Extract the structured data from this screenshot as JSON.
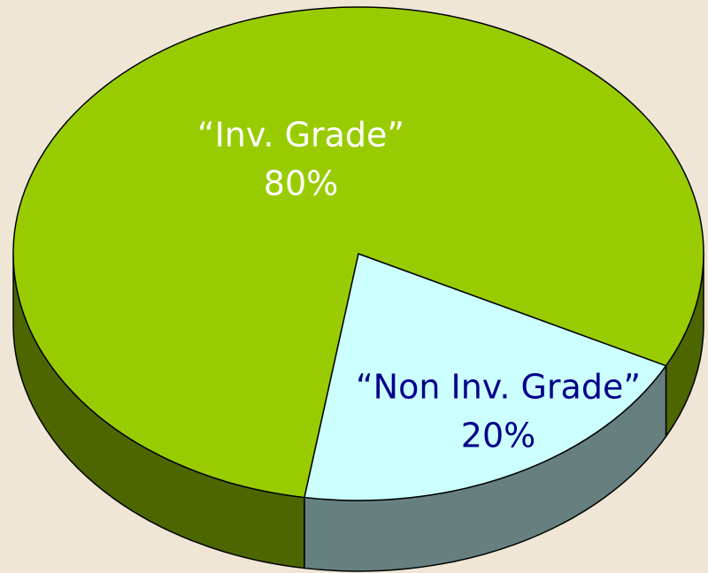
{
  "chart_data": {
    "type": "pie",
    "categories": [
      "“Inv. Grade”",
      "“Non Inv. Grade”"
    ],
    "values": [
      80,
      20
    ],
    "value_labels": [
      "80%",
      "20%"
    ],
    "colors": [
      "#99cc00",
      "#ccffff"
    ],
    "side_colors": [
      "#4d6600",
      "#668080"
    ]
  }
}
